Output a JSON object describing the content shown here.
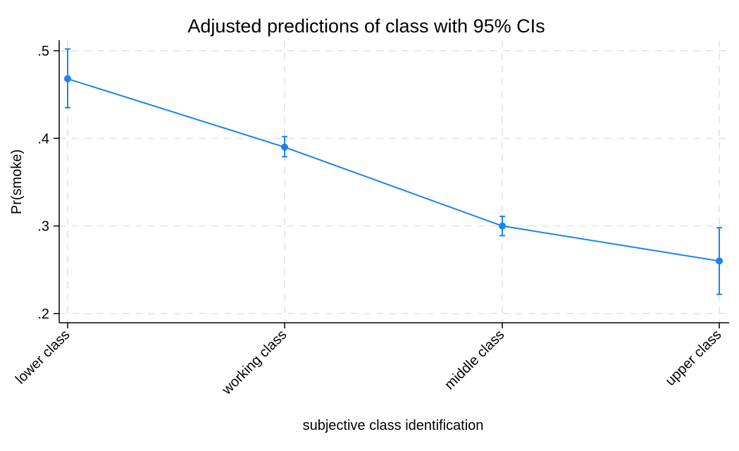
{
  "chart_data": {
    "type": "line",
    "title": "Adjusted predictions of class with 95% CIs",
    "xlabel": "subjective class identification",
    "ylabel": "Pr(smoke)",
    "categories": [
      "lower class",
      "working class",
      "middle class",
      "upper class"
    ],
    "series": [
      {
        "values": [
          0.468,
          0.39,
          0.3,
          0.26
        ],
        "ci_lower": [
          0.435,
          0.379,
          0.289,
          0.222
        ],
        "ci_upper": [
          0.502,
          0.402,
          0.311,
          0.298
        ]
      }
    ],
    "ylim": [
      0.2,
      0.5
    ],
    "yticks": [
      0.2,
      0.3,
      0.4,
      0.5
    ],
    "ytick_labels": [
      ".2",
      ".3",
      ".4",
      ".5"
    ],
    "grid": true,
    "colors": {
      "series": "#1a85e8"
    }
  }
}
